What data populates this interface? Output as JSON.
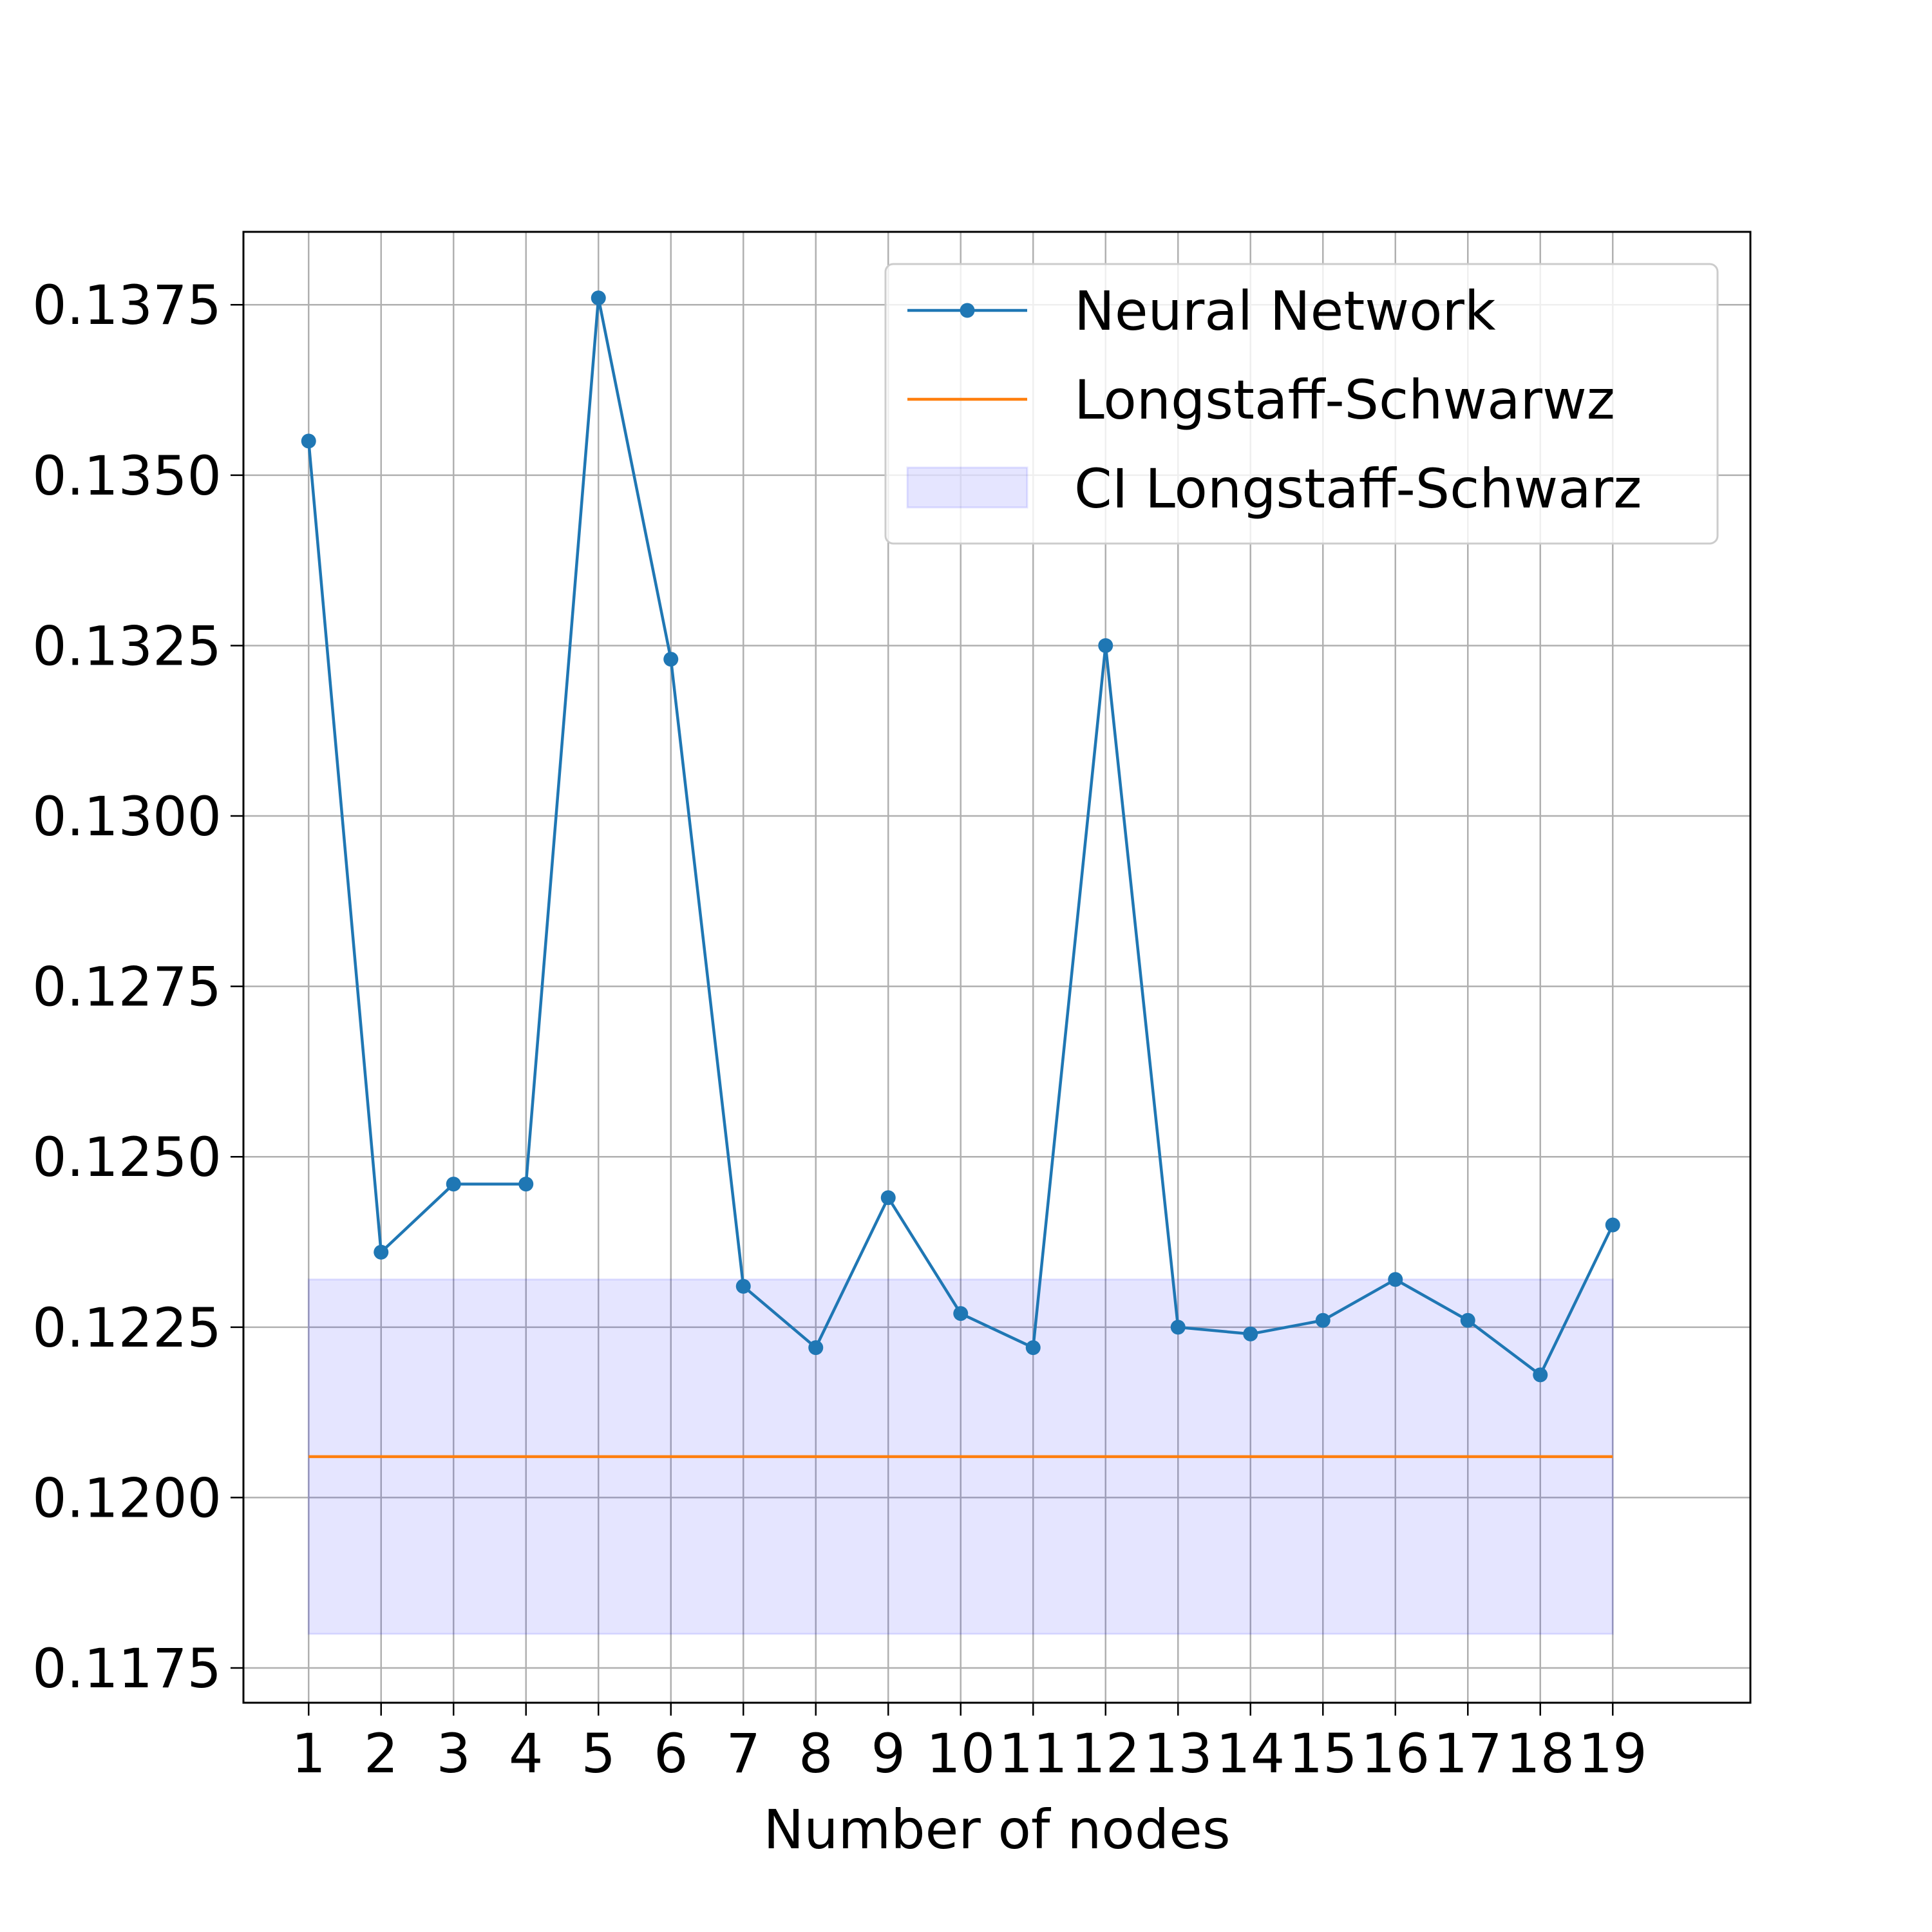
{
  "chart_data": {
    "type": "line",
    "xlabel": "Number of nodes",
    "ylabel": "",
    "x": [
      1,
      2,
      3,
      4,
      5,
      6,
      7,
      8,
      9,
      10,
      11,
      12,
      13,
      14,
      15,
      16,
      17,
      18,
      19
    ],
    "x_tick_labels": [
      "1",
      "2",
      "3",
      "4",
      "5",
      "6",
      "7",
      "8",
      "9",
      "10",
      "11",
      "12",
      "13",
      "14",
      "15",
      "16",
      "17",
      "18",
      "19"
    ],
    "xlim": [
      0.1,
      20.9
    ],
    "ylim": [
      0.11699,
      0.13857
    ],
    "y_ticks": [
      0.1175,
      0.12,
      0.1225,
      0.125,
      0.1275,
      0.13,
      0.1325,
      0.135,
      0.1375
    ],
    "y_tick_labels": [
      "0.1175",
      "0.1200",
      "0.1225",
      "0.1250",
      "0.1275",
      "0.1300",
      "0.1325",
      "0.1350",
      "0.1375"
    ],
    "grid": true,
    "legend_position": "top-right",
    "series": [
      {
        "name": "Neural Network",
        "kind": "line-markers",
        "color": "#1f77b4",
        "values": [
          0.1355,
          0.1236,
          0.1246,
          0.1246,
          0.1376,
          0.1323,
          0.1231,
          0.1222,
          0.1244,
          0.1227,
          0.1222,
          0.1325,
          0.1225,
          0.1224,
          0.1226,
          0.1232,
          0.1226,
          0.1218,
          0.124
        ]
      },
      {
        "name": "Longstaff-Schwarwz",
        "kind": "hline",
        "color": "#ff7f0e",
        "value": 0.1206,
        "x_range": [
          1,
          19
        ]
      },
      {
        "name": "CI Longstaff-Schwarz",
        "kind": "band",
        "color": "#0000ff",
        "low": 0.118,
        "high": 0.1232,
        "x_range": [
          1,
          19
        ]
      }
    ]
  }
}
